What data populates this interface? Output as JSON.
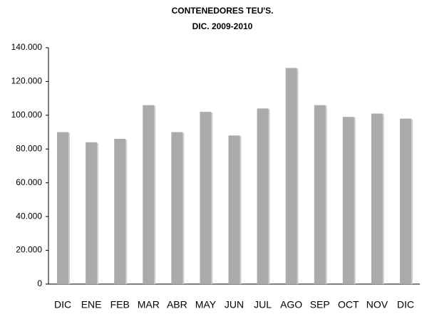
{
  "chart_data": {
    "type": "bar",
    "title": "CONTENEDORES TEU'S.",
    "subtitle": "DIC. 2009-2010",
    "categories": [
      "DIC",
      "ENE",
      "FEB",
      "MAR",
      "ABR",
      "MAY",
      "JUN",
      "JUL",
      "AGO",
      "SEP",
      "OCT",
      "NOV",
      "DIC"
    ],
    "values": [
      90000,
      84000,
      86000,
      106000,
      90000,
      102000,
      88000,
      104000,
      128000,
      106000,
      99000,
      101000,
      98000
    ],
    "color": "#aaaaab",
    "ylim": [
      0,
      140000
    ],
    "yticks": [
      0,
      {
        "value": 20000,
        "label": "20.000"
      },
      {
        "value": 40000,
        "label": "40.000"
      },
      {
        "value": 60000,
        "label": "60.000"
      },
      {
        "value": 80000,
        "label": "80.000"
      },
      {
        "value": 100000,
        "label": "100.000"
      },
      {
        "value": 120000,
        "label": "120.000"
      },
      {
        "value": 140000,
        "label": "140.000"
      }
    ],
    "grid": false
  }
}
